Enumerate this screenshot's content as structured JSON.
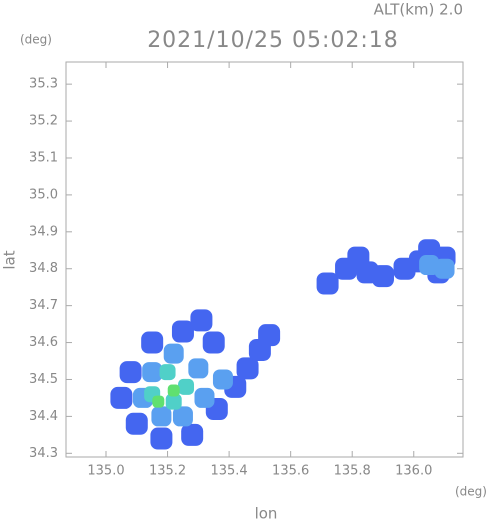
{
  "chart_data": {
    "type": "scatter",
    "title": "2021/10/25 05:02:18",
    "subtitle": "ALT(km) 2.0",
    "y_unit": "(deg)",
    "x_unit": "(deg)",
    "y_label": "lat",
    "x_label": "lon",
    "xlim": [
      134.87,
      136.16
    ],
    "ylim": [
      34.29,
      35.36
    ],
    "xticks": [
      {
        "value": 135.0,
        "label": "135.0"
      },
      135.2,
      135.4,
      135.6,
      135.8,
      {
        "value": 136.0,
        "label": "136.0"
      }
    ],
    "yticks": [
      34.3,
      34.4,
      34.5,
      34.6,
      34.7,
      34.8,
      34.9,
      {
        "value": 35.0,
        "label": "35.0"
      },
      35.1,
      35.2,
      35.3
    ],
    "series": [
      {
        "color": "#4466f0",
        "x": [
          135.05,
          135.1,
          135.18,
          135.28,
          135.36,
          135.42,
          135.46,
          135.35,
          135.25,
          135.15,
          135.08,
          135.5,
          135.53,
          135.78,
          135.82,
          135.85,
          135.9,
          135.97,
          136.02,
          136.05,
          136.1,
          136.08,
          135.72,
          135.31
        ],
        "values": [
          34.45,
          34.38,
          34.34,
          34.35,
          34.42,
          34.48,
          34.53,
          34.6,
          34.63,
          34.6,
          34.52,
          34.58,
          34.62,
          34.8,
          34.83,
          34.79,
          34.78,
          34.8,
          34.82,
          34.85,
          34.83,
          34.79,
          34.76,
          34.66
        ]
      },
      {
        "color": "#5aa0f0",
        "x": [
          135.12,
          135.18,
          135.25,
          135.32,
          135.3,
          135.22,
          135.15,
          135.38,
          136.05,
          136.1
        ],
        "values": [
          34.45,
          34.4,
          34.4,
          34.45,
          34.53,
          34.57,
          34.52,
          34.5,
          34.81,
          34.8
        ]
      },
      {
        "color": "#50d0c8",
        "x": [
          135.15,
          135.22,
          135.26,
          135.2
        ],
        "values": [
          34.46,
          34.44,
          34.48,
          34.52
        ]
      },
      {
        "color": "#60e070",
        "x": [
          135.17,
          135.22
        ],
        "values": [
          34.44,
          34.47
        ]
      }
    ]
  }
}
